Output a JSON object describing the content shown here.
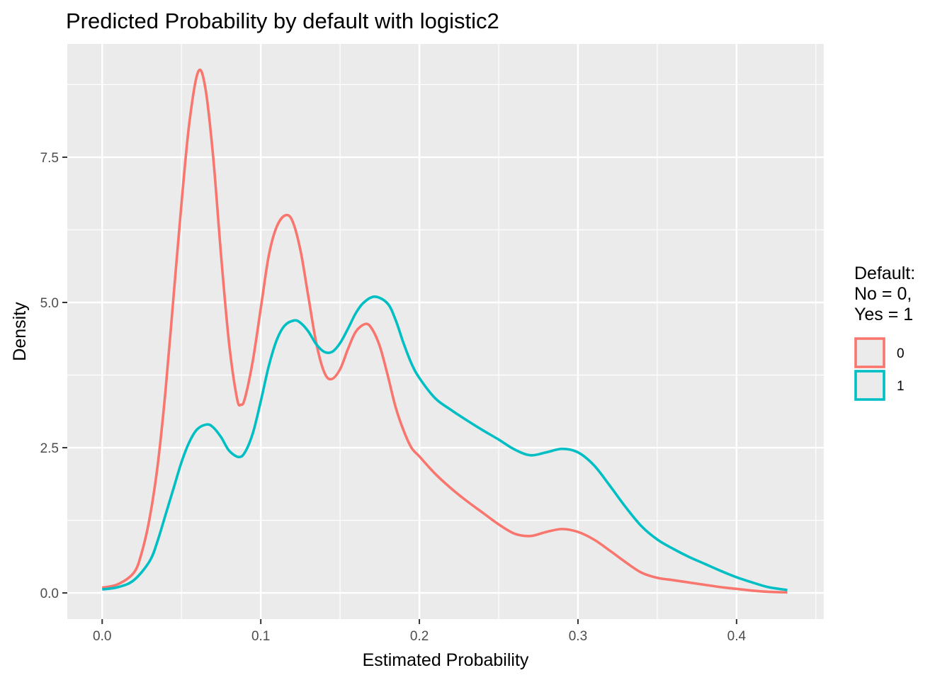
{
  "chart_data": {
    "type": "line",
    "title": "Predicted Probability by default with logistic2",
    "xlabel": "Estimated Probability",
    "ylabel": "Density",
    "xlim": [
      -0.022,
      0.455
    ],
    "ylim": [
      -0.45,
      9.45
    ],
    "x_ticks": [
      0.0,
      0.1,
      0.2,
      0.3,
      0.4
    ],
    "x_tick_labels": [
      "0.0",
      "0.1",
      "0.2",
      "0.3",
      "0.4"
    ],
    "y_ticks": [
      0.0,
      2.5,
      5.0,
      7.5
    ],
    "y_tick_labels": [
      "0.0",
      "2.5",
      "5.0",
      "7.5"
    ],
    "grid": true,
    "legend": {
      "title_lines": [
        "Default:",
        "No = 0,",
        "Yes = 1"
      ],
      "placement": "right"
    },
    "series": [
      {
        "name": "0",
        "color": "#f8766d",
        "points": [
          [
            0.0,
            0.09
          ],
          [
            0.01,
            0.15
          ],
          [
            0.02,
            0.35
          ],
          [
            0.025,
            0.7
          ],
          [
            0.03,
            1.3
          ],
          [
            0.035,
            2.2
          ],
          [
            0.04,
            3.5
          ],
          [
            0.045,
            5.1
          ],
          [
            0.05,
            6.7
          ],
          [
            0.055,
            8.1
          ],
          [
            0.0605,
            8.97
          ],
          [
            0.065,
            8.7
          ],
          [
            0.07,
            7.5
          ],
          [
            0.075,
            5.8
          ],
          [
            0.08,
            4.3
          ],
          [
            0.085,
            3.35
          ],
          [
            0.0875,
            3.24
          ],
          [
            0.09,
            3.35
          ],
          [
            0.095,
            4.0
          ],
          [
            0.1,
            4.9
          ],
          [
            0.105,
            5.8
          ],
          [
            0.11,
            6.3
          ],
          [
            0.1155,
            6.5
          ],
          [
            0.12,
            6.4
          ],
          [
            0.125,
            5.9
          ],
          [
            0.13,
            5.1
          ],
          [
            0.135,
            4.3
          ],
          [
            0.14,
            3.8
          ],
          [
            0.1445,
            3.68
          ],
          [
            0.15,
            3.85
          ],
          [
            0.155,
            4.2
          ],
          [
            0.16,
            4.5
          ],
          [
            0.166,
            4.63
          ],
          [
            0.17,
            4.55
          ],
          [
            0.175,
            4.25
          ],
          [
            0.18,
            3.75
          ],
          [
            0.185,
            3.2
          ],
          [
            0.19,
            2.8
          ],
          [
            0.195,
            2.5
          ],
          [
            0.2,
            2.35
          ],
          [
            0.21,
            2.05
          ],
          [
            0.22,
            1.8
          ],
          [
            0.23,
            1.58
          ],
          [
            0.24,
            1.38
          ],
          [
            0.25,
            1.18
          ],
          [
            0.26,
            1.02
          ],
          [
            0.27,
            0.98
          ],
          [
            0.28,
            1.05
          ],
          [
            0.29,
            1.1
          ],
          [
            0.3,
            1.05
          ],
          [
            0.31,
            0.92
          ],
          [
            0.32,
            0.73
          ],
          [
            0.33,
            0.53
          ],
          [
            0.34,
            0.35
          ],
          [
            0.35,
            0.26
          ],
          [
            0.36,
            0.22
          ],
          [
            0.37,
            0.18
          ],
          [
            0.38,
            0.14
          ],
          [
            0.39,
            0.1
          ],
          [
            0.4,
            0.07
          ],
          [
            0.41,
            0.04
          ],
          [
            0.42,
            0.02
          ],
          [
            0.432,
            0.01
          ]
        ]
      },
      {
        "name": "1",
        "color": "#00bfc4",
        "points": [
          [
            0.0,
            0.06
          ],
          [
            0.01,
            0.1
          ],
          [
            0.02,
            0.22
          ],
          [
            0.03,
            0.55
          ],
          [
            0.035,
            0.9
          ],
          [
            0.04,
            1.35
          ],
          [
            0.045,
            1.8
          ],
          [
            0.05,
            2.25
          ],
          [
            0.055,
            2.6
          ],
          [
            0.06,
            2.82
          ],
          [
            0.066,
            2.9
          ],
          [
            0.07,
            2.85
          ],
          [
            0.075,
            2.68
          ],
          [
            0.08,
            2.45
          ],
          [
            0.086,
            2.34
          ],
          [
            0.09,
            2.42
          ],
          [
            0.095,
            2.75
          ],
          [
            0.1,
            3.3
          ],
          [
            0.105,
            3.9
          ],
          [
            0.11,
            4.35
          ],
          [
            0.115,
            4.6
          ],
          [
            0.121,
            4.69
          ],
          [
            0.125,
            4.65
          ],
          [
            0.13,
            4.5
          ],
          [
            0.135,
            4.28
          ],
          [
            0.14,
            4.15
          ],
          [
            0.145,
            4.15
          ],
          [
            0.15,
            4.3
          ],
          [
            0.155,
            4.55
          ],
          [
            0.16,
            4.82
          ],
          [
            0.165,
            5.0
          ],
          [
            0.172,
            5.1
          ],
          [
            0.18,
            4.98
          ],
          [
            0.185,
            4.7
          ],
          [
            0.19,
            4.3
          ],
          [
            0.195,
            3.95
          ],
          [
            0.2,
            3.7
          ],
          [
            0.21,
            3.35
          ],
          [
            0.22,
            3.15
          ],
          [
            0.23,
            2.97
          ],
          [
            0.24,
            2.8
          ],
          [
            0.25,
            2.64
          ],
          [
            0.26,
            2.47
          ],
          [
            0.27,
            2.37
          ],
          [
            0.28,
            2.42
          ],
          [
            0.29,
            2.48
          ],
          [
            0.3,
            2.42
          ],
          [
            0.31,
            2.2
          ],
          [
            0.32,
            1.85
          ],
          [
            0.33,
            1.48
          ],
          [
            0.34,
            1.15
          ],
          [
            0.35,
            0.92
          ],
          [
            0.36,
            0.76
          ],
          [
            0.37,
            0.62
          ],
          [
            0.38,
            0.5
          ],
          [
            0.39,
            0.38
          ],
          [
            0.4,
            0.27
          ],
          [
            0.41,
            0.18
          ],
          [
            0.42,
            0.1
          ],
          [
            0.432,
            0.05
          ]
        ]
      }
    ]
  }
}
